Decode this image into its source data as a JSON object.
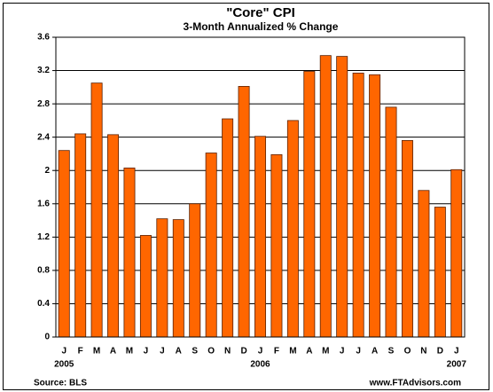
{
  "chart_data": {
    "type": "bar",
    "title": "\"Core\" CPI",
    "subtitle": "3-Month Annualized % Change",
    "categories": [
      "J",
      "F",
      "M",
      "A",
      "M",
      "J",
      "J",
      "A",
      "S",
      "O",
      "N",
      "D",
      "J",
      "F",
      "M",
      "A",
      "M",
      "J",
      "J",
      "A",
      "S",
      "O",
      "N",
      "D",
      "J"
    ],
    "years": [
      "2005",
      "2006",
      "2007"
    ],
    "values": [
      2.24,
      2.44,
      3.05,
      2.43,
      2.03,
      1.22,
      1.42,
      1.41,
      1.6,
      2.21,
      2.62,
      3.01,
      2.41,
      2.19,
      2.6,
      3.19,
      3.38,
      3.37,
      3.17,
      3.15,
      2.76,
      2.36,
      1.76,
      1.56,
      2.01
    ],
    "color": "#ff6600",
    "ylim": [
      0,
      3.6
    ],
    "yticks": [
      0,
      0.4,
      0.8,
      1.2,
      1.6,
      2,
      2.4,
      2.8,
      3.2,
      3.6
    ],
    "grid": true,
    "source": "Source: BLS",
    "website": "www.FTAdvisors.com"
  }
}
